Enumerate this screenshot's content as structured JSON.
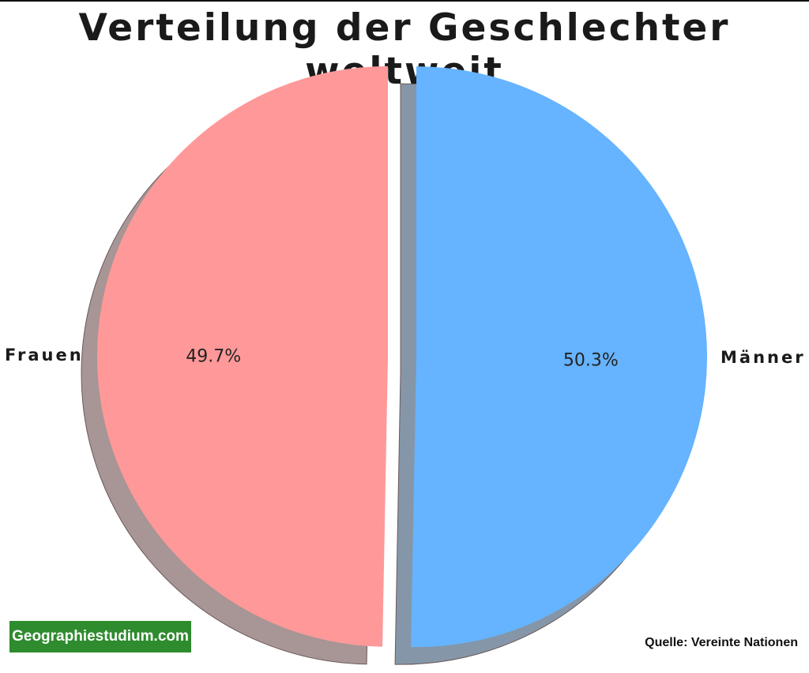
{
  "chart_data": {
    "type": "pie",
    "title": "Verteilung der Geschlechter weltweit",
    "slices": [
      {
        "label": "Frauen",
        "value": 49.7,
        "value_label": "49.7%",
        "color": "#ff9999"
      },
      {
        "label": "Männer",
        "value": 50.3,
        "value_label": "50.3%",
        "color": "#66b3ff"
      }
    ],
    "shadow": true,
    "exploded": true
  },
  "branding": {
    "site": "Geographiestudium.com"
  },
  "source": "Quelle: Vereinte Nationen",
  "colors": {
    "frauen": "#ff9999",
    "maenner": "#66b3ff",
    "badge": "#2e8b2e"
  }
}
